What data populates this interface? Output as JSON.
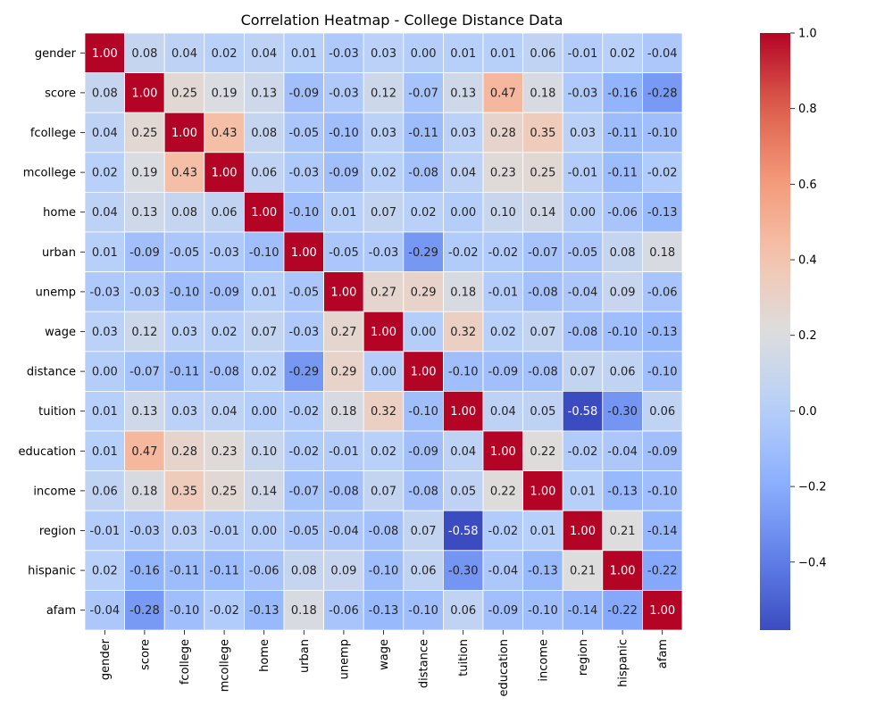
{
  "chart_data": {
    "type": "heatmap",
    "title": "Correlation Heatmap - College Distance Data",
    "rows": [
      "gender",
      "score",
      "fcollege",
      "mcollege",
      "home",
      "urban",
      "unemp",
      "wage",
      "distance",
      "tuition",
      "education",
      "income",
      "region",
      "hispanic",
      "afam"
    ],
    "columns": [
      "gender",
      "score",
      "fcollege",
      "mcollege",
      "home",
      "urban",
      "unemp",
      "wage",
      "distance",
      "tuition",
      "education",
      "income",
      "region",
      "hispanic",
      "afam"
    ],
    "values": [
      [
        1.0,
        0.08,
        0.04,
        0.02,
        0.04,
        0.01,
        -0.03,
        0.03,
        -0.0,
        0.01,
        0.01,
        0.06,
        -0.01,
        0.02,
        -0.04
      ],
      [
        0.08,
        1.0,
        0.25,
        0.19,
        0.13,
        -0.09,
        -0.03,
        0.12,
        -0.07,
        0.13,
        0.47,
        0.18,
        -0.03,
        -0.16,
        -0.28
      ],
      [
        0.04,
        0.25,
        1.0,
        0.43,
        0.08,
        -0.05,
        -0.1,
        0.03,
        -0.11,
        0.03,
        0.28,
        0.35,
        0.03,
        -0.11,
        -0.1
      ],
      [
        0.02,
        0.19,
        0.43,
        1.0,
        0.06,
        -0.03,
        -0.09,
        0.02,
        -0.08,
        0.04,
        0.23,
        0.25,
        -0.01,
        -0.11,
        -0.02
      ],
      [
        0.04,
        0.13,
        0.08,
        0.06,
        1.0,
        -0.1,
        0.01,
        0.07,
        0.02,
        -0.0,
        0.1,
        0.14,
        0.0,
        -0.06,
        -0.13
      ],
      [
        0.01,
        -0.09,
        -0.05,
        -0.03,
        -0.1,
        1.0,
        -0.05,
        -0.03,
        -0.29,
        -0.02,
        -0.02,
        -0.07,
        -0.05,
        0.08,
        0.18
      ],
      [
        -0.03,
        -0.03,
        -0.1,
        -0.09,
        0.01,
        -0.05,
        1.0,
        0.27,
        0.29,
        0.18,
        -0.01,
        -0.08,
        -0.04,
        0.09,
        -0.06
      ],
      [
        0.03,
        0.12,
        0.03,
        0.02,
        0.07,
        -0.03,
        0.27,
        1.0,
        -0.0,
        0.32,
        0.02,
        0.07,
        -0.08,
        -0.1,
        -0.13
      ],
      [
        -0.0,
        -0.07,
        -0.11,
        -0.08,
        0.02,
        -0.29,
        0.29,
        -0.0,
        1.0,
        -0.1,
        -0.09,
        -0.08,
        0.07,
        0.06,
        -0.1
      ],
      [
        0.01,
        0.13,
        0.03,
        0.04,
        -0.0,
        -0.02,
        0.18,
        0.32,
        -0.1,
        1.0,
        0.04,
        0.05,
        -0.58,
        -0.3,
        0.06
      ],
      [
        0.01,
        0.47,
        0.28,
        0.23,
        0.1,
        -0.02,
        -0.01,
        0.02,
        -0.09,
        0.04,
        1.0,
        0.22,
        -0.02,
        -0.04,
        -0.09
      ],
      [
        0.06,
        0.18,
        0.35,
        0.25,
        0.14,
        -0.07,
        -0.08,
        0.07,
        -0.08,
        0.05,
        0.22,
        1.0,
        0.01,
        -0.13,
        -0.1
      ],
      [
        -0.01,
        -0.03,
        0.03,
        -0.01,
        0.0,
        -0.05,
        -0.04,
        -0.08,
        0.07,
        -0.58,
        -0.02,
        0.01,
        1.0,
        0.21,
        -0.14
      ],
      [
        0.02,
        -0.16,
        -0.11,
        -0.11,
        -0.06,
        0.08,
        0.09,
        -0.1,
        0.06,
        -0.3,
        -0.04,
        -0.13,
        0.21,
        1.0,
        -0.22
      ],
      [
        -0.04,
        -0.28,
        -0.1,
        -0.02,
        -0.13,
        0.18,
        -0.06,
        -0.13,
        -0.1,
        0.06,
        -0.09,
        -0.1,
        -0.14,
        -0.22,
        1.0
      ]
    ],
    "value_format": "2 decimals",
    "colormap": "coolwarm",
    "vmin": -0.58,
    "vmax": 1.0,
    "colorbar_ticks": [
      1.0,
      0.8,
      0.6,
      0.4,
      0.2,
      0.0,
      -0.2,
      -0.4
    ],
    "colorbar_tick_labels": [
      "1.0",
      "0.8",
      "0.6",
      "0.4",
      "0.2",
      "0.0",
      "−0.2",
      "−0.4"
    ],
    "grid": false,
    "cell_border_color": "#ffffff"
  }
}
